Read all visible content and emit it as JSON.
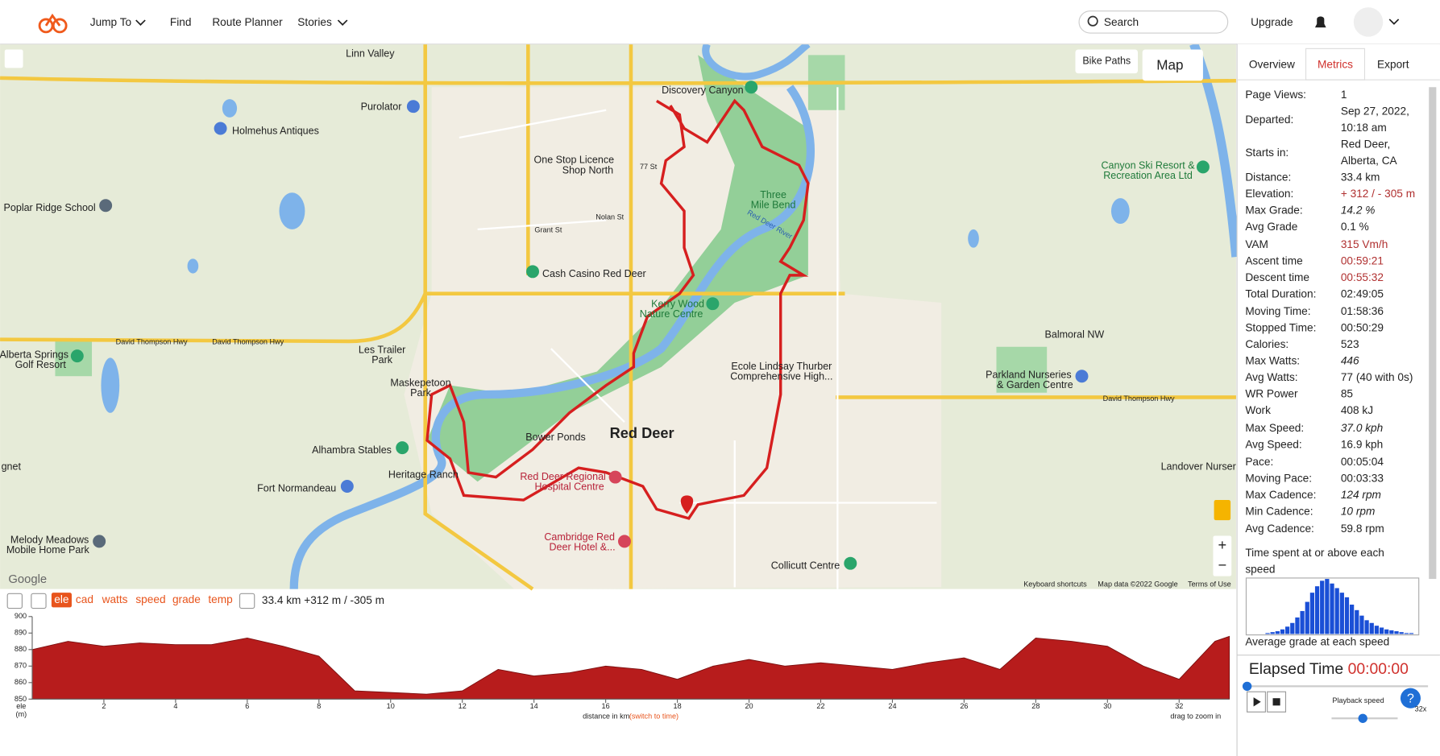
{
  "header": {
    "nav": [
      "Jump To",
      "Find",
      "Route Planner",
      "Stories"
    ],
    "search": "Search",
    "upgrade": "Upgrade"
  },
  "map": {
    "controls": {
      "bike_paths": "Bike Paths",
      "map": "Map"
    },
    "labels": [
      "Linn Valley",
      "Purolator",
      "Holmehus Antiques",
      "Discovery Canyon",
      "One Stop Licence",
      "Shop North",
      "Poplar Ridge School",
      "Three",
      "Mile Bend",
      "Canyon Ski Resort &",
      "Recreation Area Ltd",
      "Cash Casino Red Deer",
      "Kerry Wood",
      "Nature Centre",
      "Les Trailer",
      "Park",
      "Maskepetoon",
      "Park",
      "Alberta Springs",
      "Golf Resort",
      "Balmoral NW",
      "Ecole Lindsay Thurber",
      "Comprehensive High...",
      "Parkland Nurseries",
      "& Garden Centre",
      "Red Deer",
      "Bower Ponds",
      "Alhambra Stables",
      "Heritage Ranch",
      "Fort Normandeau",
      "Red Deer Regional",
      "Hospital Centre",
      "Landover Nurser",
      "gnet",
      "Cambridge Red",
      "Deer Hotel &...",
      "Melody Meadows",
      "Mobile Home Park",
      "Collicutt Centre",
      "David Thompson Hwy",
      "David Thompson Hwy",
      "David Thompson Hwy",
      "77 St",
      "Grant St",
      "Nolan St",
      "Red Deer River",
      "Google"
    ],
    "attribution": [
      "Keyboard shortcuts",
      "Map data ©2022 Google",
      "Terms of Use"
    ]
  },
  "elevation": {
    "toolbar": {
      "buttons": [
        "ele",
        "cad",
        "watts",
        "speed",
        "grade",
        "temp"
      ],
      "summary": "33.4 km +312 m / -305 m"
    },
    "chart": {
      "type": "area",
      "color": "#b71c1c",
      "ylabel": [
        "ele",
        "(m)"
      ],
      "xlabel": "distance in km",
      "xlabel_link": "(switch to time)",
      "hint": "drag to zoom in",
      "x": [
        0,
        1,
        2,
        3,
        4,
        5,
        6,
        7,
        8,
        9,
        10,
        11,
        12,
        13,
        14,
        15,
        16,
        17,
        18,
        19,
        20,
        21,
        22,
        23,
        24,
        25,
        26,
        27,
        28,
        29,
        30,
        31,
        32,
        33,
        33.4
      ],
      "values": [
        880,
        885,
        882,
        884,
        883,
        883,
        887,
        882,
        876,
        855,
        854,
        853,
        855,
        868,
        864,
        866,
        870,
        868,
        862,
        870,
        874,
        870,
        872,
        870,
        868,
        872,
        875,
        868,
        887,
        885,
        882,
        870,
        862,
        885,
        888
      ],
      "xlim": [
        0,
        33.4
      ],
      "ylim": [
        850,
        900
      ],
      "xticks": [
        2,
        4,
        6,
        8,
        10,
        12,
        14,
        16,
        18,
        20,
        22,
        24,
        26,
        28,
        30,
        32
      ],
      "yticks": [
        850,
        860,
        870,
        880,
        890,
        900
      ]
    }
  },
  "metrics": {
    "tabs": [
      "Overview",
      "Metrics",
      "Export"
    ],
    "rows": [
      {
        "label": "Page Views:",
        "value": "1"
      },
      {
        "label": "Departed:",
        "value": [
          "Sep 27, 2022,",
          "10:18 am"
        ]
      },
      {
        "label": "Starts in:",
        "value": [
          "Red Deer,",
          "Alberta, CA"
        ]
      },
      {
        "label": "Distance:",
        "value": "33.4 km"
      },
      {
        "label": "Elevation:",
        "value": "+ 312 / - 305 m"
      },
      {
        "label": "Max Grade:",
        "value": "14.2 %"
      },
      {
        "label": "Avg Grade",
        "value": "0.1 %"
      },
      {
        "label": "VAM",
        "value": "315 Vm/h"
      },
      {
        "label": "Ascent time",
        "value": "00:59:21"
      },
      {
        "label": "Descent time",
        "value": "00:55:32"
      },
      {
        "label": "Total Duration:",
        "value": "02:49:05"
      },
      {
        "label": "Moving Time:",
        "value": "01:58:36"
      },
      {
        "label": "Stopped Time:",
        "value": "00:50:29"
      },
      {
        "label": "Calories:",
        "value": "523"
      },
      {
        "label": "Max Watts:",
        "value": "446"
      },
      {
        "label": "Avg Watts:",
        "value": "77 (40 with 0s)"
      },
      {
        "label": "WR Power",
        "value": "85"
      },
      {
        "label": "Work",
        "value": "408 kJ"
      },
      {
        "label": "Max Speed:",
        "value": "37.0 kph"
      },
      {
        "label": "Avg Speed:",
        "value": "16.9 kph"
      },
      {
        "label": "Pace:",
        "value": "00:05:04"
      },
      {
        "label": "Moving Pace:",
        "value": "00:03:33"
      },
      {
        "label": "Max Cadence:",
        "value": "124 rpm"
      },
      {
        "label": "Min Cadence:",
        "value": "10 rpm"
      },
      {
        "label": "Avg Cadence:",
        "value": "59.8 rpm"
      }
    ],
    "histogram_title": [
      "Time spent at or above each",
      "speed"
    ],
    "histogram": {
      "color": "#1a4fd6",
      "values": [
        1,
        2,
        3,
        5,
        8,
        12,
        18,
        25,
        35,
        45,
        52,
        58,
        60,
        55,
        50,
        45,
        40,
        32,
        26,
        20,
        15,
        12,
        9,
        7,
        5,
        4,
        3,
        2,
        1,
        1
      ]
    },
    "grade_title": "Average grade at each speed"
  },
  "playback": {
    "elapsed_label": "Elapsed Time",
    "elapsed_value": "00:00:00",
    "speed_label": "Playback speed",
    "speed_value": "32x"
  }
}
